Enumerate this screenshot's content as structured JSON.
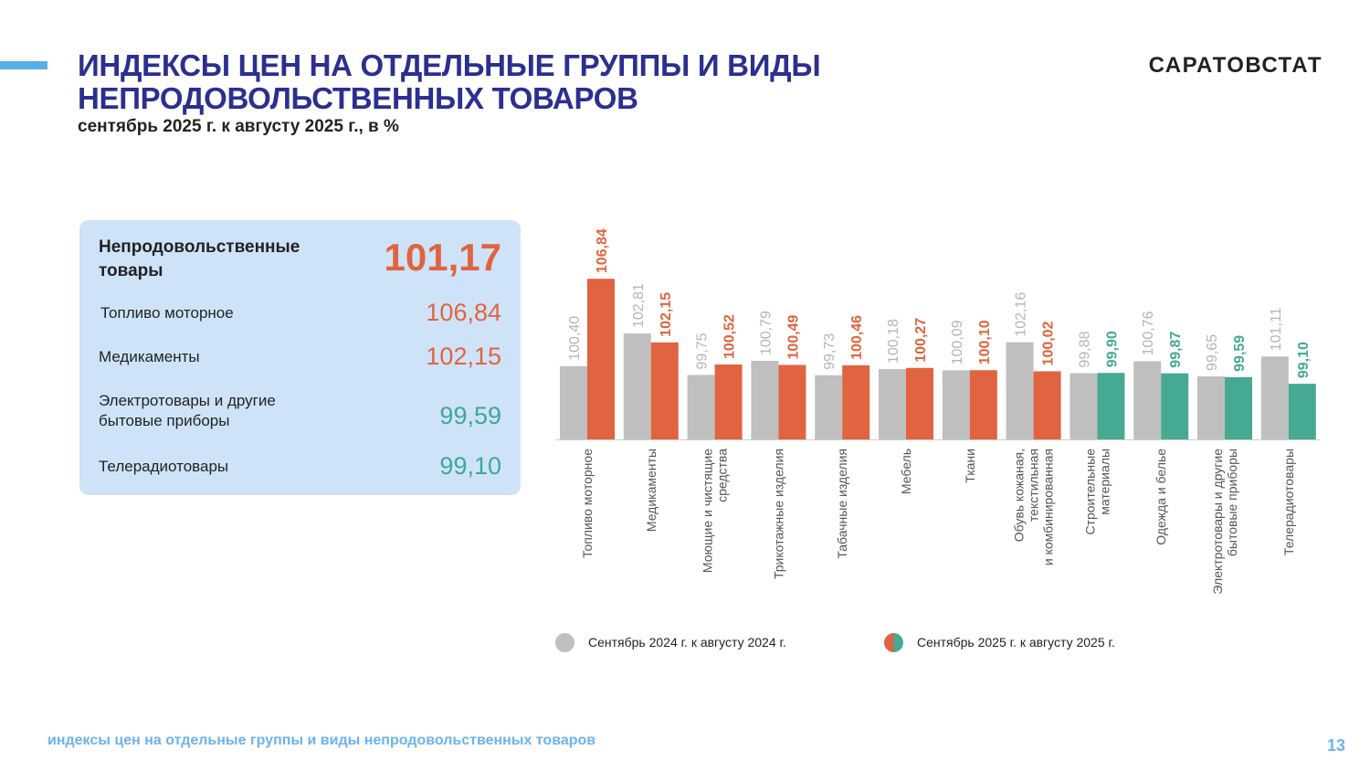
{
  "header": {
    "title_line1": "ИНДЕКСЫ ЦЕН НА ОТДЕЛЬНЫЕ ГРУППЫ И ВИДЫ",
    "title_line2": "НЕПРОДОВОЛЬСТВЕННЫХ ТОВАРОВ",
    "subtitle": "сентябрь 2025 г. к августу 2025 г., в %",
    "brand": "САРАТОВСТАТ"
  },
  "summary": {
    "total_label_line1": "Непродовольственные",
    "total_label_line2": "товары",
    "total_value": "101,17",
    "rows": [
      {
        "label": "Топливо моторное",
        "value": "106,84"
      },
      {
        "label": "Медикаменты",
        "value": "102,15"
      },
      {
        "label_line1": "Электротовары и другие",
        "label_line2": "бытовые приборы",
        "value": "99,59"
      },
      {
        "label": "Телерадиотовары",
        "value": "99,10"
      }
    ]
  },
  "chart_data": {
    "type": "bar",
    "categories": [
      [
        "Топливо моторное"
      ],
      [
        "Медикаменты"
      ],
      [
        "Моющие и чистящие",
        "средства"
      ],
      [
        "Трикотажные изделия"
      ],
      [
        "Табачные изделия"
      ],
      [
        "Мебель"
      ],
      [
        "Ткани"
      ],
      [
        "Обувь кожаная,",
        "текстильная",
        "и комбинированная"
      ],
      [
        "Строительные",
        "материалы"
      ],
      [
        "Одежда и белье"
      ],
      [
        "Электротовары и другие",
        "бытовые приборы"
      ],
      [
        "Телерадиотовары"
      ]
    ],
    "series": [
      {
        "name": "Сентябрь  2024 г. к  августу  2024 г.",
        "color": "#bfbfbf",
        "values": [
          100.4,
          102.81,
          99.75,
          100.79,
          99.73,
          100.18,
          100.09,
          102.16,
          99.88,
          100.76,
          99.65,
          101.11
        ],
        "labels": [
          "100,40",
          "102,81",
          "99,75",
          "100,79",
          "99,73",
          "100,18",
          "100,09",
          "102,16",
          "99,88",
          "100,76",
          "99,65",
          "101,11"
        ]
      },
      {
        "name": "Сентябрь  2025 г. к августу  2025 г.",
        "values": [
          106.84,
          102.15,
          100.52,
          100.49,
          100.46,
          100.27,
          100.1,
          100.02,
          99.9,
          99.87,
          99.59,
          99.1
        ],
        "labels": [
          "106,84",
          "102,15",
          "100,52",
          "100,49",
          "100,46",
          "100,27",
          "100,10",
          "100,02",
          "99,90",
          "99,87",
          "99,59",
          "99,10"
        ]
      }
    ],
    "threshold": 100,
    "color_above": "#e0643f",
    "color_below": "#45a994",
    "ylim": [
      95,
      108
    ]
  },
  "footer": {
    "text": "индексы цен на отдельные группы и виды непродовольственных товаров",
    "page": "13"
  }
}
